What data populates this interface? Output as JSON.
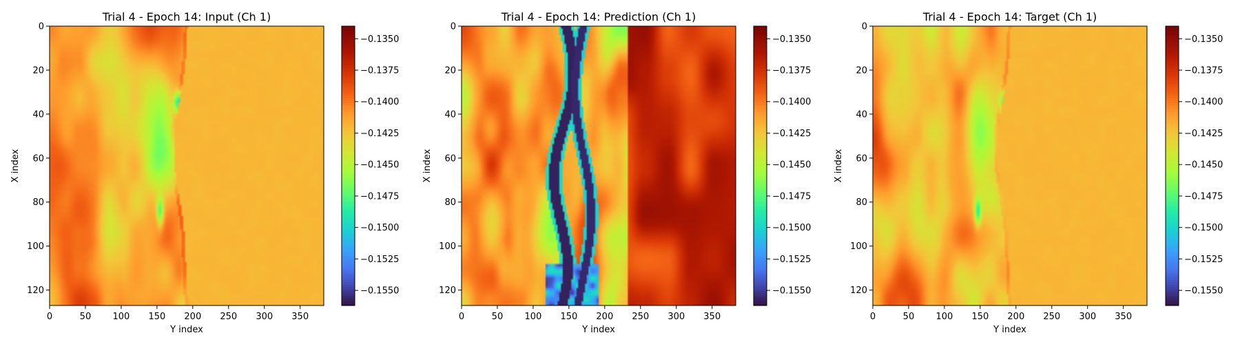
{
  "chart_data": [
    {
      "type": "heatmap",
      "title": "Trial 4 - Epoch 14: Input (Ch 1)",
      "xlabel": "Y index",
      "ylabel": "X index",
      "xlim": [
        0,
        383
      ],
      "ylim": [
        127,
        0
      ],
      "xticks": [
        0,
        50,
        100,
        150,
        200,
        250,
        300,
        350
      ],
      "yticks": [
        0,
        20,
        40,
        60,
        80,
        100,
        120
      ],
      "colorbar": {
        "colormap": "turbo",
        "range": [
          -0.1562,
          -0.134
        ],
        "ticks": [
          "−0.1350",
          "−0.1375",
          "−0.1400",
          "−0.1425",
          "−0.1450",
          "−0.1475",
          "−0.1500",
          "−0.1525",
          "−0.1550"
        ]
      }
    },
    {
      "type": "heatmap",
      "title": "Trial 4 - Epoch 14: Prediction (Ch 1)",
      "xlabel": "Y index",
      "ylabel": "X index",
      "xlim": [
        0,
        383
      ],
      "ylim": [
        127,
        0
      ],
      "xticks": [
        0,
        50,
        100,
        150,
        200,
        250,
        300,
        350
      ],
      "yticks": [
        0,
        20,
        40,
        60,
        80,
        100,
        120
      ],
      "colorbar": {
        "colormap": "turbo",
        "range": [
          -0.1562,
          -0.134
        ],
        "ticks": [
          "−0.1350",
          "−0.1375",
          "−0.1400",
          "−0.1425",
          "−0.1450",
          "−0.1475",
          "−0.1500",
          "−0.1525",
          "−0.1550"
        ]
      }
    },
    {
      "type": "heatmap",
      "title": "Trial 4 - Epoch 14: Target (Ch 1)",
      "xlabel": "Y index",
      "ylabel": "X index",
      "xlim": [
        0,
        383
      ],
      "ylim": [
        127,
        0
      ],
      "xticks": [
        0,
        50,
        100,
        150,
        200,
        250,
        300,
        350
      ],
      "yticks": [
        0,
        20,
        40,
        60,
        80,
        100,
        120
      ],
      "colorbar": {
        "colormap": "turbo",
        "range": [
          -0.1562,
          -0.134
        ],
        "ticks": [
          "−0.1350",
          "−0.1375",
          "−0.1400",
          "−0.1425",
          "−0.1450",
          "−0.1475",
          "−0.1500",
          "−0.1525",
          "−0.1550"
        ]
      }
    }
  ]
}
